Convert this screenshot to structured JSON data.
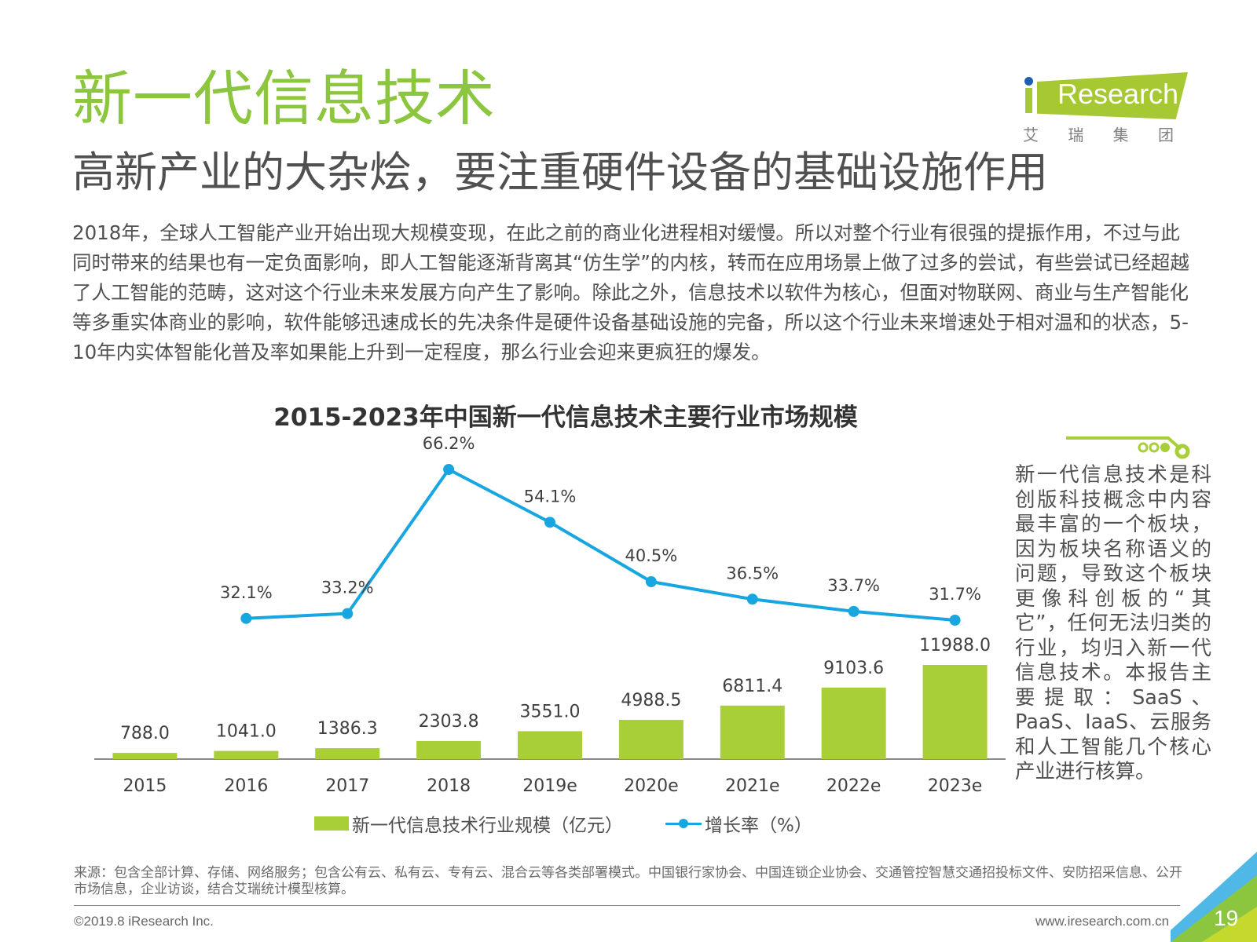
{
  "header": {
    "title": "新一代信息技术",
    "subtitle": "高新产业的大杂烩，要注重硬件设备的基础设施作用"
  },
  "logo": {
    "brand": "Research",
    "brand_prefix": "i",
    "chinese": [
      "艾",
      "瑞",
      "集",
      "团"
    ]
  },
  "body_text": "2018年，全球人工智能产业开始出现大规模变现，在此之前的商业化进程相对缓慢。所以对整个行业有很强的提振作用，不过与此同时带来的结果也有一定负面影响，即人工智能逐渐背离其“仿生学”的内核，转而在应用场景上做了过多的尝试，有些尝试已经超越了人工智能的范畴，这对这个行业未来发展方向产生了影响。除此之外，信息技术以软件为核心，但面对物联网、商业与生产智能化等多重实体商业的影响，软件能够迅速成长的先决条件是硬件设备基础设施的完备，所以这个行业未来增速处于相对温和的状态，5-10年内实体智能化普及率如果能上升到一定程度，那么行业会迎来更疯狂的爆发。",
  "side_note": "新一代信息技术是科创版科技概念中内容最丰富的一个板块，因为板块名称语义的问题，导致这个板块更像科创板的“其它”，任何无法归类的行业，均归入新一代信息技术。本报告主要提取：SaaS、PaaS、IaaS、云服务和人工智能几个核心产业进行核算。",
  "chart_data": {
    "type": "bar",
    "title": "2015-2023年中国新一代信息技术主要行业市场规模",
    "categories": [
      "2015",
      "2016",
      "2017",
      "2018",
      "2019e",
      "2020e",
      "2021e",
      "2022e",
      "2023e"
    ],
    "series": [
      {
        "name": "新一代信息技术行业规模（亿元）",
        "type": "bar",
        "axis": "left",
        "values": [
          788.0,
          1041.0,
          1386.3,
          2303.8,
          3551.0,
          4988.5,
          6811.4,
          9103.6,
          11988.0
        ],
        "labels": [
          "788.0",
          "1041.0",
          "1386.3",
          "2303.8",
          "3551.0",
          "4988.5",
          "6811.4",
          "9103.6",
          "11988.0"
        ],
        "color": "#a8cf37"
      },
      {
        "name": "增长率（%）",
        "type": "line",
        "axis": "right",
        "values": [
          null,
          32.1,
          33.2,
          66.2,
          54.1,
          40.5,
          36.5,
          33.7,
          31.7
        ],
        "labels": [
          "",
          "32.1%",
          "33.2%",
          "66.2%",
          "54.1%",
          "40.5%",
          "36.5%",
          "33.7%",
          "31.7%"
        ],
        "color": "#17a6e0"
      }
    ],
    "axes_visible": false,
    "grid": false,
    "legend_position": "bottom"
  },
  "source": "来源：包含全部计算、存储、网络服务；包含公有云、私有云、专有云、混合云等各类部署模式。中国银行家协会、中国连锁企业协会、交通管控智慧交通招投标文件、安防招采信息、公开市场信息，企业访谈，结合艾瑞统计模型核算。",
  "footer": {
    "copyright": "©2019.8 iResearch Inc.",
    "website": "www.iresearch.com.cn",
    "page_number": "19"
  },
  "colors": {
    "accent_green": "#8cc63f",
    "bar_green": "#a8cf37",
    "line_blue": "#17a6e0"
  }
}
